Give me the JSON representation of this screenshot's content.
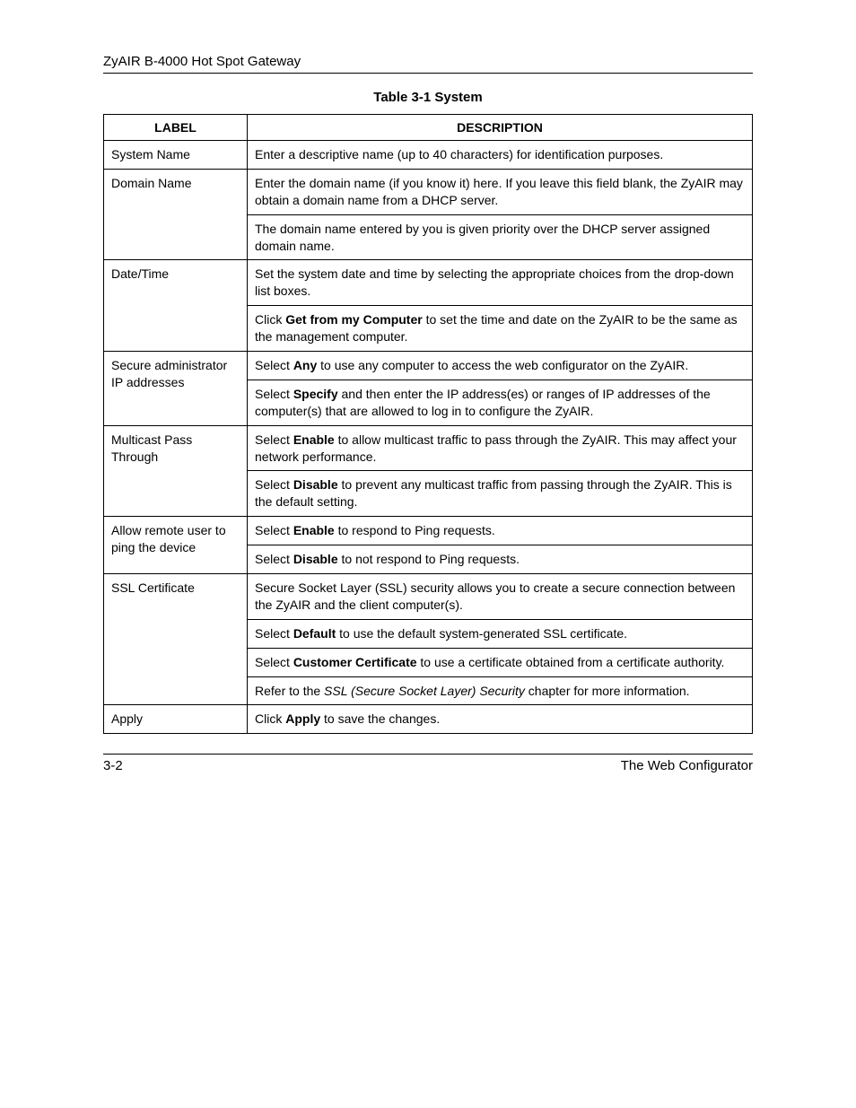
{
  "header": {
    "title": "ZyAIR B-4000 Hot Spot Gateway"
  },
  "caption": "Table 3-1 System",
  "columns": {
    "label": "LABEL",
    "description": "DESCRIPTION"
  },
  "rows": [
    {
      "label": "System Name",
      "desc": [
        [
          {
            "t": "Enter a descriptive name (up to 40 characters) for identification purposes."
          }
        ]
      ]
    },
    {
      "label": "Domain Name",
      "desc": [
        [
          {
            "t": "Enter the domain name (if you know it) here. If you leave this field blank, the ZyAIR may obtain a domain name from a DHCP server."
          }
        ],
        [
          {
            "t": "The domain name entered by you is given priority over the DHCP server assigned domain name."
          }
        ]
      ]
    },
    {
      "label": "Date/Time",
      "desc": [
        [
          {
            "t": "Set the system date and time by selecting the appropriate choices from the drop-down list boxes."
          }
        ],
        [
          {
            "t": "Click "
          },
          {
            "t": "Get from my Computer",
            "b": true
          },
          {
            "t": " to set the time and date on the ZyAIR to be the same as the management computer."
          }
        ]
      ]
    },
    {
      "label": "Secure administrator IP addresses",
      "desc": [
        [
          {
            "t": "Select "
          },
          {
            "t": "Any",
            "b": true
          },
          {
            "t": " to use any computer to access the web configurator on the ZyAIR."
          }
        ],
        [
          {
            "t": "Select "
          },
          {
            "t": "Specify",
            "b": true
          },
          {
            "t": " and then enter the IP address(es) or ranges of IP addresses of the computer(s) that are allowed to log in to configure the ZyAIR."
          }
        ]
      ]
    },
    {
      "label": "Multicast Pass Through",
      "desc": [
        [
          {
            "t": "Select "
          },
          {
            "t": "Enable",
            "b": true
          },
          {
            "t": " to allow multicast traffic to pass through the ZyAIR. This may affect your network performance."
          }
        ],
        [
          {
            "t": "Select "
          },
          {
            "t": "Disable",
            "b": true
          },
          {
            "t": " to prevent any multicast traffic from passing through the ZyAIR. This is the default setting."
          }
        ]
      ]
    },
    {
      "label": "Allow remote user to ping the device",
      "desc": [
        [
          {
            "t": "Select "
          },
          {
            "t": "Enable",
            "b": true
          },
          {
            "t": " to respond to Ping requests."
          }
        ],
        [
          {
            "t": "Select "
          },
          {
            "t": "Disable",
            "b": true
          },
          {
            "t": " to not respond to Ping requests."
          }
        ]
      ]
    },
    {
      "label": "SSL Certificate",
      "desc": [
        [
          {
            "t": "Secure Socket Layer (SSL) security allows you to create a secure connection between the ZyAIR and the client computer(s)."
          }
        ],
        [
          {
            "t": "Select "
          },
          {
            "t": "Default",
            "b": true
          },
          {
            "t": " to use the default system-generated SSL certificate."
          }
        ],
        [
          {
            "t": "Select "
          },
          {
            "t": "Customer Certificate",
            "b": true
          },
          {
            "t": " to use a certificate obtained from a certificate authority."
          }
        ],
        [
          {
            "t": "Refer to the "
          },
          {
            "t": "SSL (Secure Socket Layer) Security",
            "i": true
          },
          {
            "t": " chapter for more information."
          }
        ]
      ]
    },
    {
      "label": "Apply",
      "desc": [
        [
          {
            "t": "Click "
          },
          {
            "t": "Apply",
            "b": true
          },
          {
            "t": " to save the changes."
          }
        ]
      ]
    }
  ],
  "footer": {
    "page": "3-2",
    "section": "The Web Configurator"
  }
}
